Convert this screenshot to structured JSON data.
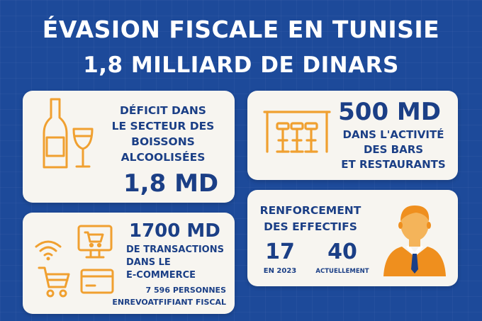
{
  "title": {
    "line1": "ÉVASION FISCALE EN TUNISIE",
    "line2": "1,8 MILLIARD DE DINARS"
  },
  "card_alcohol": {
    "text_lines": [
      "DÉFICIT DANS",
      "LE SECTEUR DES",
      "BOISSONS",
      "ALCOOLISÉES"
    ],
    "value": "1,8 MD",
    "icon": "wine-bottle-glass-icon"
  },
  "card_bars": {
    "value": "500 MD",
    "text_lines": [
      "DANS L'ACTIVITÉ",
      "DES BARS",
      "ET RESTAURANTS"
    ],
    "icon": "bar-stools-icon"
  },
  "card_ecommerce": {
    "value": "1700 MD",
    "text_lines": [
      "DE TRANSACTIONS",
      "DANS LE",
      "E-COMMERCE"
    ],
    "footer_lines": [
      "7 596 PERSONNES",
      "ENREVOATFIFIANT FISCAL"
    ],
    "icons": [
      "wifi-icon",
      "monitor-cart-icon",
      "shopping-cart-icon",
      "credit-card-icon"
    ]
  },
  "card_staff": {
    "heading_lines": [
      "RENFORCEMENT",
      "DES EFFECTIFS"
    ],
    "stat_2023": {
      "value": "17",
      "label": "EN 2023"
    },
    "stat_now": {
      "value": "40",
      "label": "ACTUELLEMENT"
    },
    "icon": "businessman-icon"
  },
  "colors": {
    "background": "#1d4a9a",
    "card": "#f7f5f0",
    "text": "#1b3f86",
    "accent": "#f0a030"
  }
}
